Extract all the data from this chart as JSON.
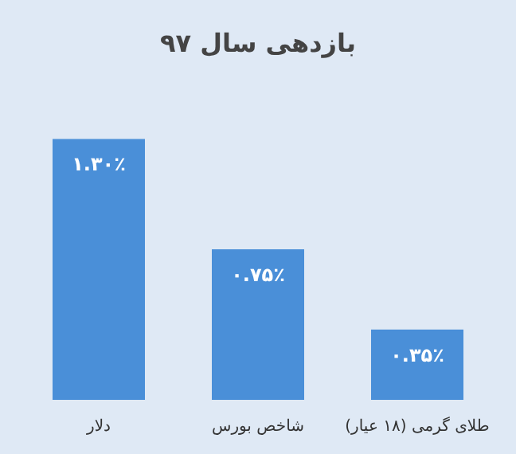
{
  "chart_data": {
    "type": "bar",
    "title": "بازدهی سال ۹۷",
    "categories": [
      "دلار",
      "شاخص بورس",
      "طلای گرمی (۱۸ عیار)"
    ],
    "values": [
      1.3,
      0.75,
      0.35
    ],
    "value_labels": [
      "۱.۳۰٪",
      "۰.۷۵٪",
      "۰.۳۵٪"
    ],
    "color": "#4a8fd8"
  }
}
